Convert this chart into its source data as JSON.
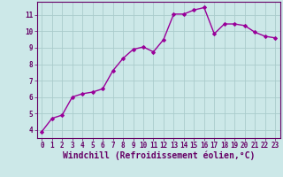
{
  "x": [
    0,
    1,
    2,
    3,
    4,
    5,
    6,
    7,
    8,
    9,
    10,
    11,
    12,
    13,
    14,
    15,
    16,
    17,
    18,
    19,
    20,
    21,
    22,
    23
  ],
  "y": [
    3.9,
    4.7,
    4.9,
    6.0,
    6.2,
    6.3,
    6.5,
    7.6,
    8.35,
    8.9,
    9.05,
    8.75,
    9.5,
    11.05,
    11.05,
    11.3,
    11.45,
    9.85,
    10.45,
    10.45,
    10.35,
    9.95,
    9.7,
    9.6
  ],
  "line_color": "#990099",
  "marker": "D",
  "marker_size": 2,
  "line_width": 1.0,
  "bg_color": "#cce8e8",
  "grid_color": "#aacccc",
  "xlabel": "Windchill (Refroidissement éolien,°C)",
  "xlabel_color": "#660066",
  "ylim": [
    3.5,
    11.8
  ],
  "xlim": [
    -0.5,
    23.5
  ],
  "yticks": [
    4,
    5,
    6,
    7,
    8,
    9,
    10,
    11
  ],
  "xticks": [
    0,
    1,
    2,
    3,
    4,
    5,
    6,
    7,
    8,
    9,
    10,
    11,
    12,
    13,
    14,
    15,
    16,
    17,
    18,
    19,
    20,
    21,
    22,
    23
  ],
  "tick_color": "#660066",
  "tick_fontsize": 5.5,
  "xlabel_fontsize": 7.0,
  "spine_color": "#660066"
}
